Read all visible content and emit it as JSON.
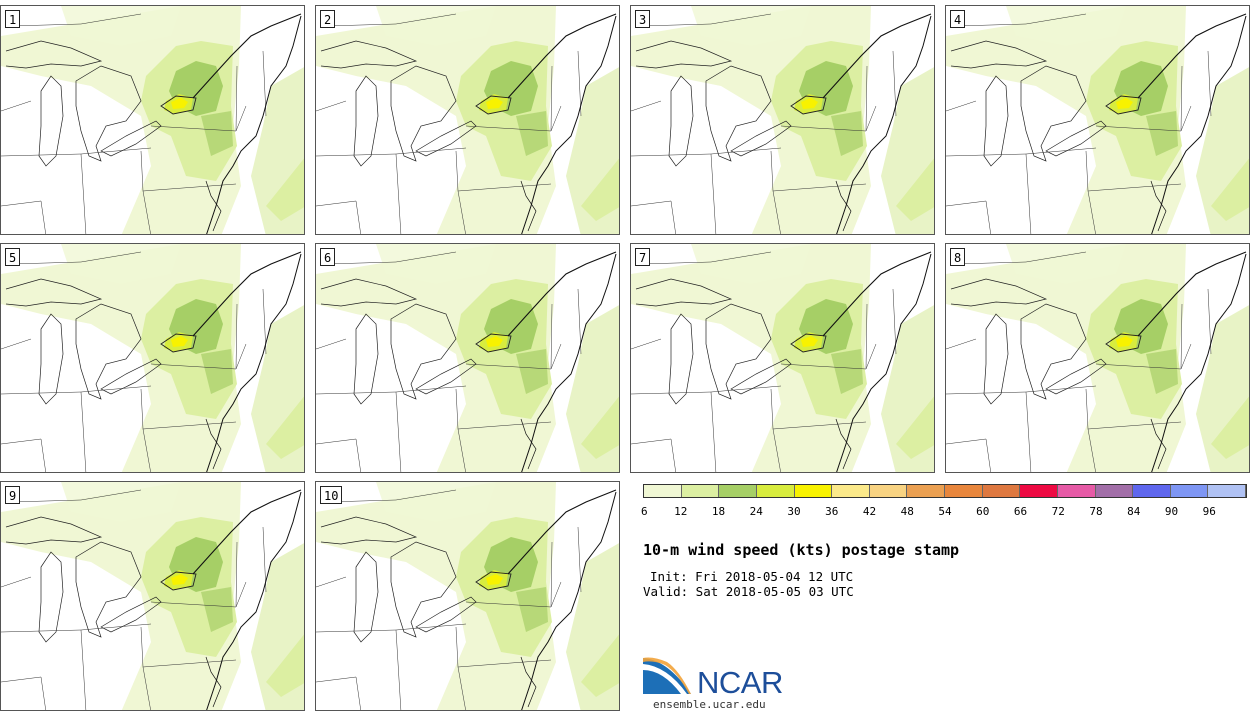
{
  "panels": [
    {
      "label": "1"
    },
    {
      "label": "2"
    },
    {
      "label": "3"
    },
    {
      "label": "4"
    },
    {
      "label": "5"
    },
    {
      "label": "6"
    },
    {
      "label": "7"
    },
    {
      "label": "8"
    },
    {
      "label": "9"
    },
    {
      "label": "10"
    }
  ],
  "colorbar": {
    "colors": [
      "#f0f7d4",
      "#dcefa2",
      "#a6cf66",
      "#d8ec3e",
      "#f8f200",
      "#fbe98a",
      "#f8d382",
      "#eba052",
      "#e8863c",
      "#de7840",
      "#ee0a43",
      "#e65aa6",
      "#a26ea8",
      "#5f67ee",
      "#7e96f4",
      "#b0c2f4"
    ],
    "tick_labels": [
      "6",
      "12",
      "18",
      "24",
      "30",
      "36",
      "42",
      "48",
      "54",
      "60",
      "66",
      "72",
      "78",
      "84",
      "90",
      "96"
    ]
  },
  "title": "10-m wind speed (kts) postage stamp",
  "init": "Init: Fri 2018-05-04 12 UTC",
  "valid": "Valid: Sat 2018-05-05 03 UTC",
  "logo": {
    "text": "NCAR",
    "url": "ensemble.ucar.edu",
    "color": "#1d4e9a"
  }
}
